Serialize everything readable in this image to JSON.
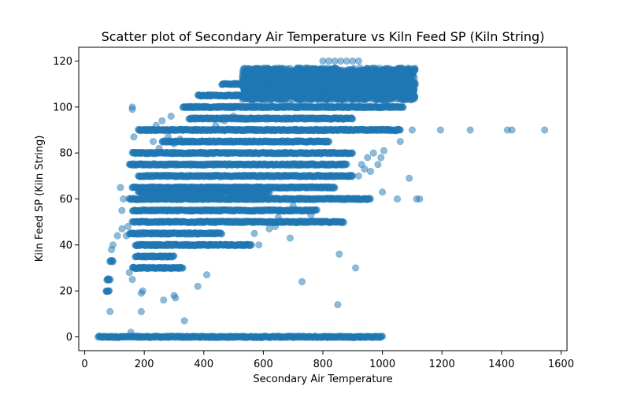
{
  "chart_data": {
    "type": "scatter",
    "title": "Scatter plot of Secondary Air Temperature vs Kiln Feed  SP  (Kiln String)",
    "xlabel": "Secondary Air Temperature",
    "ylabel": "Kiln Feed  SP  (Kiln String)",
    "xlim": [
      -20,
      1620
    ],
    "ylim": [
      -6,
      126
    ],
    "xticks": [
      0,
      200,
      400,
      600,
      800,
      1000,
      1200,
      1400,
      1600
    ],
    "yticks": [
      0,
      20,
      40,
      60,
      80,
      100,
      120
    ],
    "grid": false,
    "legend": "none",
    "marker_color": "#1f77b4",
    "marker_alpha": 0.5,
    "series": [
      {
        "bands": [
          {
            "y": 0,
            "x_from": 45,
            "x_to": 1000
          },
          {
            "y": 20,
            "x_from": 72,
            "x_to": 82
          },
          {
            "y": 25,
            "x_from": 75,
            "x_to": 85
          },
          {
            "y": 30,
            "x_from": 160,
            "x_to": 330
          },
          {
            "y": 33,
            "x_from": 85,
            "x_to": 95
          },
          {
            "y": 35,
            "x_from": 170,
            "x_to": 300
          },
          {
            "y": 40,
            "x_from": 170,
            "x_to": 560
          },
          {
            "y": 45,
            "x_from": 150,
            "x_to": 460
          },
          {
            "y": 50,
            "x_from": 160,
            "x_to": 870
          },
          {
            "y": 55,
            "x_from": 160,
            "x_to": 780
          },
          {
            "y": 60,
            "x_from": 150,
            "x_to": 960
          },
          {
            "y": 63,
            "x_from": 180,
            "x_to": 620
          },
          {
            "y": 65,
            "x_from": 160,
            "x_to": 840
          },
          {
            "y": 70,
            "x_from": 180,
            "x_to": 900
          },
          {
            "y": 75,
            "x_from": 150,
            "x_to": 880
          },
          {
            "y": 80,
            "x_from": 160,
            "x_to": 900
          },
          {
            "y": 85,
            "x_from": 260,
            "x_to": 820
          },
          {
            "y": 90,
            "x_from": 180,
            "x_to": 1060
          },
          {
            "y": 95,
            "x_from": 350,
            "x_to": 900
          },
          {
            "y": 100,
            "x_from": 330,
            "x_to": 1070
          },
          {
            "y": 105,
            "x_from": 380,
            "x_to": 1090
          },
          {
            "y": 110,
            "x_from": 460,
            "x_to": 1110
          }
        ],
        "cloud": {
          "x_from": 530,
          "x_to": 1110,
          "y_from": 103,
          "y_to": 117
        },
        "points": [
          [
            800,
            120
          ],
          [
            820,
            120
          ],
          [
            840,
            120
          ],
          [
            860,
            120
          ],
          [
            880,
            120
          ],
          [
            900,
            120
          ],
          [
            920,
            120
          ],
          [
            160,
            100
          ],
          [
            160,
            99
          ],
          [
            165,
            87
          ],
          [
            1100,
            90
          ],
          [
            1195,
            90
          ],
          [
            1295,
            90
          ],
          [
            1420,
            90
          ],
          [
            1435,
            90
          ],
          [
            1545,
            90
          ],
          [
            1050,
            90
          ],
          [
            1005,
            81
          ],
          [
            995,
            78
          ],
          [
            985,
            75
          ],
          [
            1060,
            85
          ],
          [
            1090,
            69
          ],
          [
            1050,
            60
          ],
          [
            1115,
            60
          ],
          [
            1125,
            60
          ],
          [
            1000,
            63
          ],
          [
            960,
            72
          ],
          [
            940,
            73
          ],
          [
            920,
            70
          ],
          [
            930,
            75
          ],
          [
            950,
            78
          ],
          [
            970,
            80
          ],
          [
            850,
            14
          ],
          [
            855,
            36
          ],
          [
            910,
            30
          ],
          [
            730,
            24
          ],
          [
            380,
            22
          ],
          [
            410,
            27
          ],
          [
            335,
            7
          ],
          [
            305,
            17
          ],
          [
            300,
            18
          ],
          [
            265,
            16
          ],
          [
            190,
            11
          ],
          [
            85,
            11
          ],
          [
            155,
            2
          ],
          [
            160,
            25
          ],
          [
            150,
            28
          ],
          [
            190,
            19
          ],
          [
            195,
            20
          ],
          [
            90,
            38
          ],
          [
            95,
            40
          ],
          [
            110,
            44
          ],
          [
            125,
            47
          ],
          [
            125,
            55
          ],
          [
            130,
            60
          ],
          [
            120,
            65
          ],
          [
            140,
            44
          ],
          [
            145,
            48
          ],
          [
            690,
            43
          ],
          [
            520,
            40
          ],
          [
            570,
            45
          ],
          [
            585,
            40
          ],
          [
            620,
            47
          ],
          [
            640,
            48
          ],
          [
            650,
            52
          ],
          [
            720,
            55
          ],
          [
            760,
            53
          ],
          [
            700,
            57
          ],
          [
            280,
            87
          ],
          [
            320,
            86
          ],
          [
            300,
            84
          ],
          [
            250,
            82
          ],
          [
            230,
            85
          ],
          [
            440,
            92
          ],
          [
            470,
            94
          ],
          [
            500,
            96
          ],
          [
            240,
            92
          ],
          [
            260,
            94
          ],
          [
            290,
            96
          ],
          [
            200,
            62
          ]
        ]
      }
    ]
  }
}
